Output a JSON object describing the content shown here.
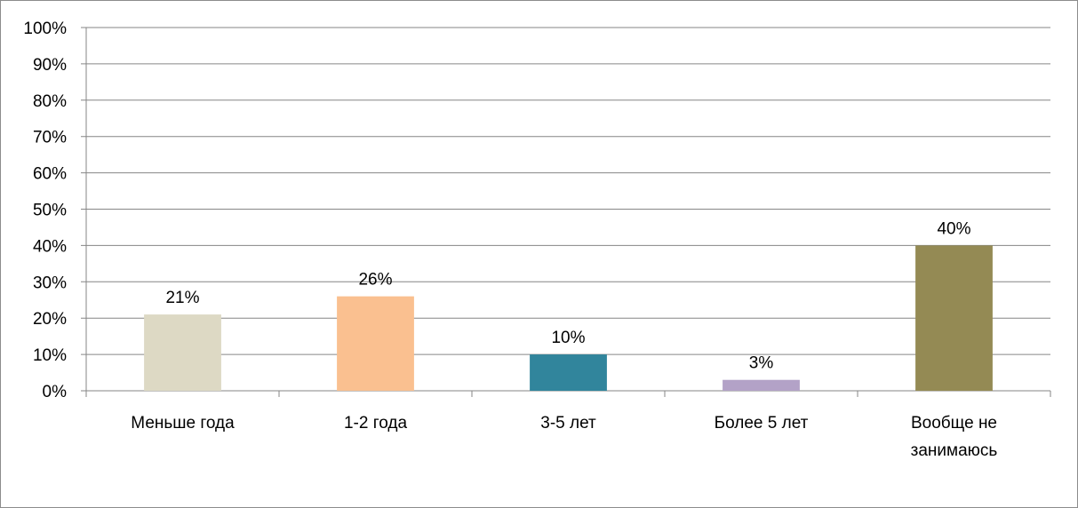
{
  "chart_data": {
    "type": "bar",
    "title": "",
    "xlabel": "",
    "ylabel": "",
    "categories": [
      [
        "Меньше года"
      ],
      [
        "1-2 года"
      ],
      [
        "3-5 лет"
      ],
      [
        "Более 5 лет"
      ],
      [
        "Вообще не",
        "занимаюсь"
      ]
    ],
    "values": [
      21,
      26,
      10,
      3,
      40
    ],
    "data_labels": [
      "21%",
      "26%",
      "10%",
      "3%",
      "40%"
    ],
    "colors": [
      "#ddd9c4",
      "#fac090",
      "#31859c",
      "#b3a2c7",
      "#948a54"
    ],
    "ylim": [
      0,
      100
    ],
    "yticks": [
      "0%",
      "10%",
      "20%",
      "30%",
      "40%",
      "50%",
      "60%",
      "70%",
      "80%",
      "90%",
      "100%"
    ],
    "grid": true,
    "legend": "none"
  }
}
